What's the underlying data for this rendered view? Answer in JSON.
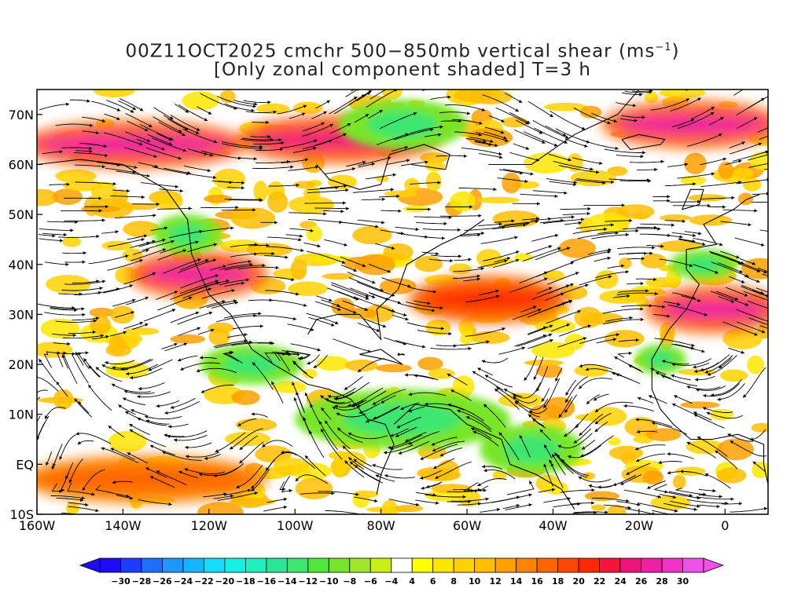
{
  "title": {
    "line1_main": "00Z11OCT2025 cmchr 500−850mb vertical shear (ms",
    "line1_sup": "−1",
    "line1_end": ")",
    "line2": "[Only zonal component shaded] T=3 h"
  },
  "map": {
    "lon_min": -160,
    "lon_max": 10,
    "lat_min": -10,
    "lat_max": 75,
    "lat_ticks": [
      {
        "lat": 70,
        "label": "70N"
      },
      {
        "lat": 60,
        "label": "60N"
      },
      {
        "lat": 50,
        "label": "50N"
      },
      {
        "lat": 40,
        "label": "40N"
      },
      {
        "lat": 30,
        "label": "30N"
      },
      {
        "lat": 20,
        "label": "20N"
      },
      {
        "lat": 10,
        "label": "10N"
      },
      {
        "lat": 0,
        "label": "EQ"
      },
      {
        "lat": -10,
        "label": "10S"
      }
    ],
    "lon_ticks": [
      {
        "lon": -160,
        "label": "160W"
      },
      {
        "lon": -140,
        "label": "140W"
      },
      {
        "lon": -120,
        "label": "120W"
      },
      {
        "lon": -100,
        "label": "100W"
      },
      {
        "lon": -80,
        "label": "80W"
      },
      {
        "lon": -60,
        "label": "60W"
      },
      {
        "lon": -40,
        "label": "40W"
      },
      {
        "lon": -20,
        "label": "20W"
      },
      {
        "lon": 0,
        "label": "0"
      }
    ]
  },
  "colorbar": {
    "labels": [
      "−30",
      "−28",
      "−26",
      "−24",
      "−22",
      "−20",
      "−18",
      "−16",
      "−14",
      "−12",
      "−10",
      "−8",
      "−6",
      "−4",
      "4",
      "6",
      "8",
      "10",
      "12",
      "14",
      "16",
      "18",
      "20",
      "22",
      "24",
      "26",
      "28",
      "30"
    ],
    "colors": [
      "#1e0aff",
      "#1e3cff",
      "#1e6eff",
      "#1e96ff",
      "#14b4ff",
      "#14dcff",
      "#14f0e6",
      "#1ef0be",
      "#28e696",
      "#3ce66e",
      "#50e63c",
      "#78e628",
      "#a0e628",
      "#c8f014",
      "#ffffff",
      "#ffff00",
      "#ffe600",
      "#ffd200",
      "#ffbe00",
      "#ffa000",
      "#ff8200",
      "#ff6400",
      "#ff4600",
      "#ff2800",
      "#f5143c",
      "#f0147a",
      "#f01ea0",
      "#f032c8",
      "#f050e6"
    ],
    "under_color": "#1e0aff",
    "over_color": "#f050e6"
  },
  "bands": [
    {
      "lat": 64,
      "lon_from": -160,
      "lon_to": -115,
      "color": "#ff6400",
      "hot": "#f01ea0"
    },
    {
      "lat": 65,
      "lon_from": -110,
      "lon_to": -70,
      "color": "#ff6400",
      "hot": "#f0147a"
    },
    {
      "lat": 68,
      "lon_from": -25,
      "lon_to": 10,
      "color": "#ff6400",
      "hot": "#f01ea0"
    },
    {
      "lat": 38,
      "lon_from": -135,
      "lon_to": -110,
      "color": "#ff6400",
      "hot": "#f01ea0"
    },
    {
      "lat": 33,
      "lon_from": -70,
      "lon_to": -40,
      "color": "#ff6400",
      "hot": "#ff2800"
    },
    {
      "lat": 31,
      "lon_from": -15,
      "lon_to": 10,
      "color": "#ff6400",
      "hot": "#f01ea0"
    },
    {
      "lat": -3,
      "lon_from": -160,
      "lon_to": -110,
      "color": "#ff8200",
      "hot": "#ff6400"
    }
  ],
  "green_patches": [
    {
      "lat": 68,
      "lon": -75,
      "rx_deg": 15,
      "ry_deg": 5
    },
    {
      "lat": 46,
      "lon": -125,
      "rx_deg": 8,
      "ry_deg": 4
    },
    {
      "lat": 20,
      "lon": -110,
      "rx_deg": 12,
      "ry_deg": 4
    },
    {
      "lat": 9,
      "lon": -75,
      "rx_deg": 25,
      "ry_deg": 6
    },
    {
      "lat": 3,
      "lon": -45,
      "rx_deg": 12,
      "ry_deg": 5
    },
    {
      "lat": 21,
      "lon": -15,
      "rx_deg": 6,
      "ry_deg": 3
    },
    {
      "lat": 40,
      "lon": -5,
      "rx_deg": 8,
      "ry_deg": 3
    }
  ]
}
